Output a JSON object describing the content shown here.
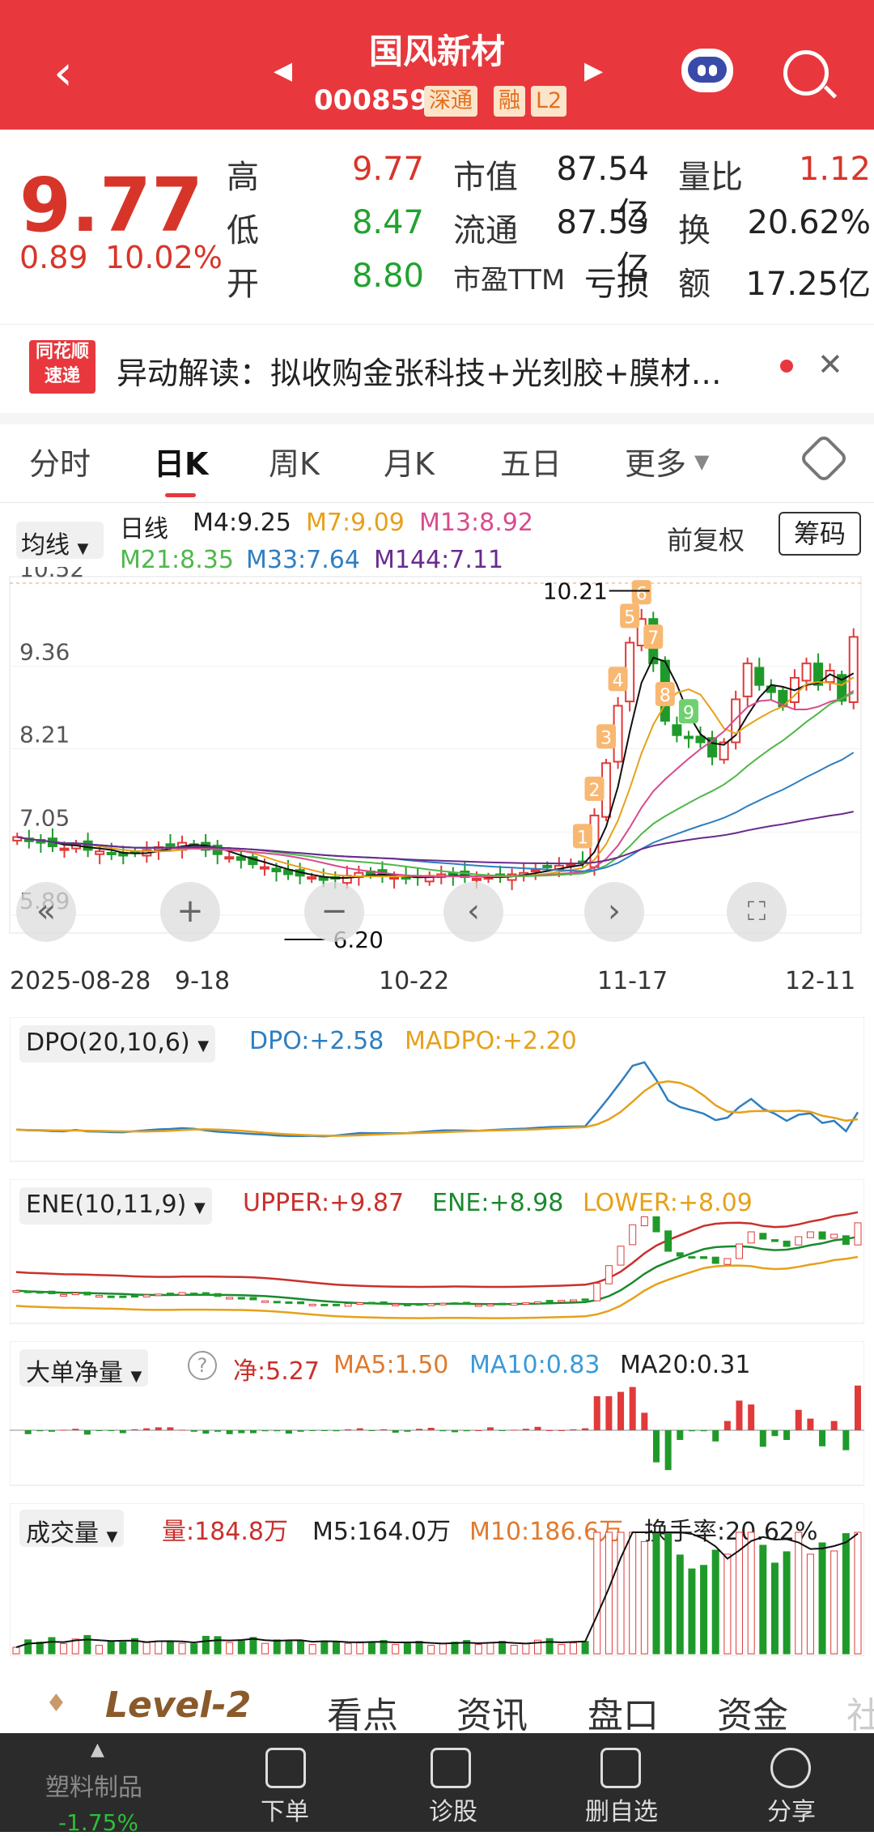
{
  "header": {
    "title": "国风新材",
    "code": "000859",
    "tag1": "深通",
    "tag2": "融",
    "tag3": "L2"
  },
  "quote": {
    "price": "9.77",
    "change": "0.89",
    "change_pct": "10.02%",
    "high_label": "高",
    "high": "9.77",
    "low_label": "低",
    "low": "8.47",
    "open_label": "开",
    "open": "8.80",
    "mktcap_label": "市值",
    "mktcap": "87.54亿",
    "float_label": "流通",
    "float": "87.53亿",
    "pe_label": "市盈TTM",
    "pe": "亏损",
    "vr_label": "量比",
    "vr": "1.12",
    "turn_label": "换",
    "turn": "20.62%",
    "amt_label": "额",
    "amt": "17.25亿"
  },
  "news": {
    "logo_top": "同花顺",
    "logo_bottom": "速递",
    "text": "异动解读：拟收购金张科技+光刻胶+膜材…"
  },
  "tabs": [
    "分时",
    "日K",
    "周K",
    "月K",
    "五日",
    "更多"
  ],
  "kline": {
    "ma_label": "均线",
    "period": "日线",
    "m4": "M4:9.25",
    "m7": "M7:9.09",
    "m13": "M13:8.92",
    "m21": "M21:8.35",
    "m33": "M33:7.64",
    "m144": "M144:7.11",
    "adjust": "前复权",
    "chips": "筹码",
    "yticks": [
      "10.52",
      "9.36",
      "8.21",
      "7.05",
      "5.89"
    ],
    "high_ann": "10.21",
    "low_ann": "6.20",
    "xticks": [
      "2025-08-28",
      "9-18",
      "10-22",
      "11-17",
      "12-11"
    ],
    "nines": [
      "1",
      "2",
      "3",
      "4",
      "5",
      "6",
      "7",
      "8",
      "9"
    ]
  },
  "dpo": {
    "name": "DPO(20,10,6)",
    "v1": "DPO:+2.58",
    "v2": "MADPO:+2.20"
  },
  "ene": {
    "name": "ENE(10,11,9)",
    "v1": "UPPER:+9.87",
    "v2": "ENE:+8.98",
    "v3": "LOWER:+8.09"
  },
  "big": {
    "name": "大单净量",
    "v1": "净:5.27",
    "v2": "MA5:1.50",
    "v3": "MA10:0.83",
    "v4": "MA20:0.31"
  },
  "vol": {
    "name": "成交量",
    "v1": "量:184.8万",
    "v2": "M5:164.0万",
    "v3": "M10:186.6万",
    "v4": "换手率:20.62%"
  },
  "bottom_tabs": [
    "Level-2",
    "看点",
    "资讯",
    "盘口",
    "资金",
    "社"
  ],
  "bottom_bar": {
    "sector": "塑料制品",
    "sector_pct": "-1.75%",
    "items": [
      "下单",
      "诊股",
      "删自选",
      "分享"
    ]
  },
  "chart_data": {
    "type": "candlestick",
    "title": "国风新材 日K",
    "x_range": [
      "2025-08-28",
      "12-11"
    ],
    "ylim": [
      5.89,
      10.52
    ],
    "annotations": [
      {
        "label": "10.21",
        "kind": "high"
      },
      {
        "label": "6.20",
        "kind": "low"
      }
    ],
    "closes": [
      6.98,
      6.92,
      6.9,
      6.85,
      6.82,
      6.88,
      6.8,
      6.78,
      6.74,
      6.72,
      6.76,
      6.8,
      6.84,
      6.86,
      6.9,
      6.88,
      6.8,
      6.74,
      6.7,
      6.66,
      6.6,
      6.56,
      6.5,
      6.46,
      6.44,
      6.42,
      6.38,
      6.4,
      6.44,
      6.48,
      6.46,
      6.44,
      6.42,
      6.4,
      6.42,
      6.44,
      6.46,
      6.44,
      6.42,
      6.4,
      6.42,
      6.44,
      6.46,
      6.48,
      6.52,
      6.56,
      6.58,
      6.6,
      6.62,
      7.28,
      8.01,
      8.81,
      9.69,
      10.02,
      9.4,
      8.6,
      8.4,
      8.36,
      8.3,
      8.1,
      8.3,
      8.9,
      9.4,
      9.1,
      9.0,
      8.8,
      9.2,
      9.4,
      9.1,
      9.3,
      8.88,
      9.77
    ]
  }
}
